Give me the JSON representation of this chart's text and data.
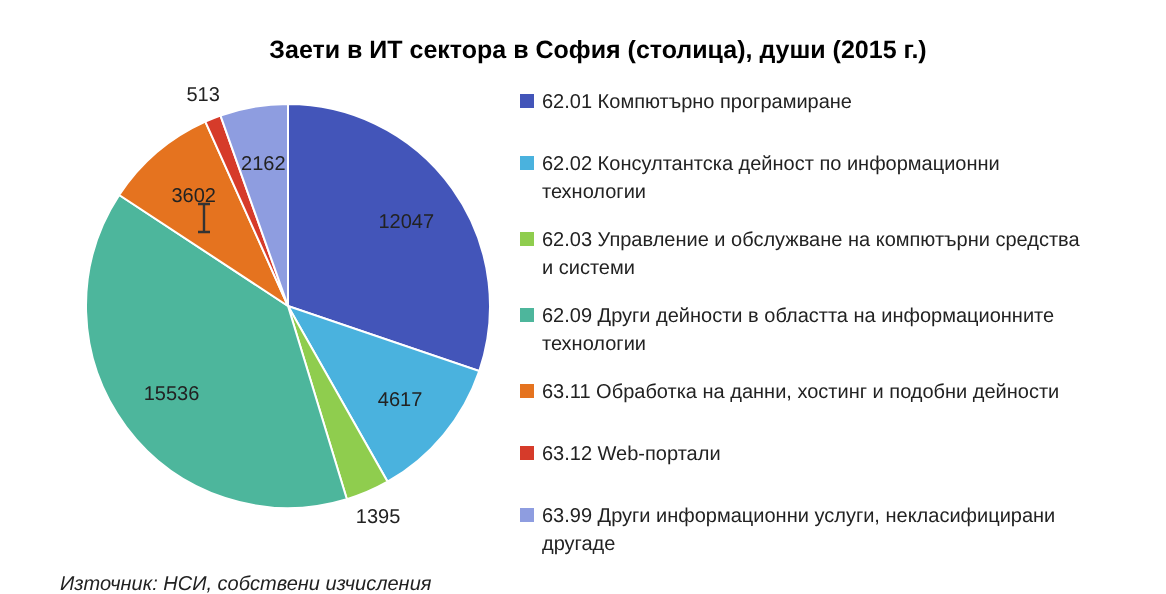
{
  "chart_data": {
    "type": "pie",
    "title": "Заети в ИТ сектора в София (столица), души (2015 г.)",
    "categories": [
      "62.01 Компютърно програмиране",
      "62.02 Консултантска дейност по информационни технологии",
      "62.03 Управление и обслужване на компютърни средства и системи",
      "62.09 Други дейности в областта на информационните технологии",
      "63.11 Обработка на данни, хостинг и подобни дейности",
      "63.12 Web-портали",
      "63.99 Други информационни услуги, некласифицирани другаде"
    ],
    "values": [
      12047,
      4617,
      1395,
      15536,
      3602,
      513,
      2162
    ],
    "colors": [
      "#4355b9",
      "#4ab2de",
      "#8fcd4e",
      "#4db69c",
      "#e5731f",
      "#d63b2a",
      "#8e9de0"
    ],
    "data_labels": true,
    "legend": "right",
    "annotations": [
      "Източник: НСИ, собствени изчисления"
    ]
  }
}
